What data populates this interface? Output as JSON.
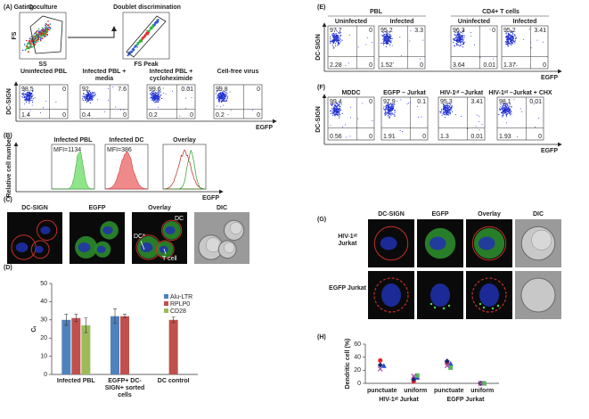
{
  "figure": {
    "a": {
      "label": "(A) Gating",
      "coculture": "Coculture",
      "doublet": "Doublet discrimination",
      "fs": "FS",
      "ss": "SS",
      "fs_peak": "FS Peak",
      "y_axis": "DC-SIGN",
      "x_axis": "EGFP",
      "plots": [
        {
          "title": "Uninfected PBL",
          "quadrants": [
            98.5,
            0,
            1.4,
            0
          ]
        },
        {
          "title": "Infected PBL + media",
          "quadrants": [
            92,
            7.6,
            0.4,
            0
          ]
        },
        {
          "title": "Infected PBL + cycloheximide",
          "quadrants": [
            99.6,
            0.01,
            0.2,
            0
          ]
        },
        {
          "title": "Cell-free virus",
          "quadrants": [
            99.8,
            0,
            0.2,
            0
          ]
        }
      ]
    },
    "b": {
      "label": "(B)",
      "y_axis": "Relative cell number",
      "x_axis": "EGFP",
      "plots": [
        {
          "title": "Infected  PBL",
          "mfi": "MFI=1134"
        },
        {
          "title": "Infected DC",
          "mfi": "MFI=386"
        },
        {
          "title": "Overlay"
        }
      ]
    },
    "c": {
      "label": "(C)",
      "columns": [
        "DC-SIGN",
        "EGFP",
        "Overlay",
        "DIC"
      ],
      "annotations": [
        "DC",
        "DC*",
        "T cell"
      ]
    },
    "e": {
      "label": "(E)",
      "groups": [
        "PBL",
        "CD4+ T cells"
      ],
      "y_axis": "DC-SIGN",
      "x_axis": "EGFP",
      "plots": [
        {
          "title": "Uninfected",
          "quadrants": [
            97.7,
            0,
            2.28,
            0
          ]
        },
        {
          "title": "Infected",
          "quadrants": [
            95.2,
            3.3,
            1.52,
            0
          ]
        },
        {
          "title": "Uninfected",
          "quadrants": [
            96.3,
            0,
            3.64,
            0.01
          ]
        },
        {
          "title": "Infected",
          "quadrants": [
            95.2,
            3.41,
            1.37,
            0
          ]
        }
      ]
    },
    "f": {
      "label": "(F)",
      "y_axis": "DC-SIGN",
      "x_axis": "EGFP",
      "plots": [
        {
          "title": "MDDC",
          "quadrants": [
            99.4,
            0,
            0.56,
            0
          ]
        },
        {
          "title": "EGFP – Jurkat",
          "quadrants": [
            97.9,
            0.1,
            1.91,
            0
          ]
        },
        {
          "title": "HIV-1ᵘᵗ –Jurkat",
          "quadrants": [
            95.3,
            3.41,
            1.3,
            0.01
          ]
        },
        {
          "title": "HIV-1ᵘᵗ –Jurkat + CHX",
          "quadrants": [
            98.1,
            0.01,
            1.93,
            0
          ]
        }
      ]
    },
    "g": {
      "label": "(G)",
      "columns": [
        "DC-SIGN",
        "EGFP",
        "Overlay",
        "DIC"
      ],
      "rows": [
        "HIV-1ᵘᵗ Jurkat",
        "EGFP Jurkat"
      ]
    }
  },
  "chart_data": [
    {
      "type": "bar",
      "panel_label": "(D)",
      "ylabel": "Cₜ",
      "categories": [
        "Infected PBL",
        "EGFP+ DC-SIGN+ sorted cells",
        "DC control"
      ],
      "series": [
        {
          "name": "Alu-LTR",
          "color": "#4f81bd",
          "values": [
            30,
            32,
            null
          ],
          "errors": [
            3,
            4,
            null
          ]
        },
        {
          "name": "RPLP0",
          "color": "#c0504d",
          "values": [
            31,
            32,
            30
          ],
          "errors": [
            2,
            1,
            1.5
          ]
        },
        {
          "name": "CD28",
          "color": "#9bbb59",
          "values": [
            27,
            null,
            null
          ],
          "errors": [
            4,
            null,
            null
          ]
        }
      ],
      "ylim": [
        0,
        50
      ],
      "yticks": [
        0,
        10,
        20,
        30,
        40,
        50
      ]
    },
    {
      "type": "dot",
      "panel_label": "(H)",
      "ylabel": "Dendritic cell (%)",
      "categories": [
        "punctuate",
        "uniform",
        "punctuate",
        "uniform"
      ],
      "groups": [
        "HIV-1ᵘᵗ Jurkat",
        "EGFP Jurkat"
      ],
      "series": [
        {
          "color": "#e8262b",
          "marker": "circle",
          "values": [
            35,
            3,
            32,
            0
          ]
        },
        {
          "color": "#1f4fd8",
          "marker": "triangle",
          "values": [
            27,
            9,
            30,
            0
          ]
        },
        {
          "color": "#1a2a6c",
          "marker": "diamond",
          "values": [
            28,
            6,
            34,
            0
          ]
        },
        {
          "color": "#59b55a",
          "marker": "square",
          "values": [
            null,
            12,
            24,
            0
          ]
        },
        {
          "color": "#a64ca6",
          "marker": "x",
          "values": [
            22,
            11,
            27,
            0
          ]
        }
      ],
      "ylim": [
        0,
        60
      ],
      "yticks": [
        0,
        20,
        40,
        60
      ]
    }
  ]
}
